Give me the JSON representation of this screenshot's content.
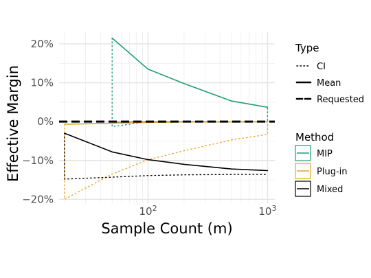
{
  "chart_data": {
    "type": "line",
    "xlabel": "Sample Count (m)",
    "ylabel": "Effective Margin",
    "x_scale": "log10",
    "xlim": [
      18,
      1150
    ],
    "ylim": [
      -21,
      23
    ],
    "x_ticks": [
      {
        "value": 100,
        "base": "10",
        "exp": "2"
      },
      {
        "value": 1000,
        "base": "10",
        "exp": "3"
      }
    ],
    "y_ticks": [
      {
        "value": 20,
        "label": "20%"
      },
      {
        "value": 10,
        "label": "10%"
      },
      {
        "value": 0,
        "label": "0%"
      },
      {
        "value": -10,
        "label": "−10%"
      },
      {
        "value": -20,
        "label": "−20%"
      }
    ],
    "grid": true,
    "legend_placement": "right",
    "requested_margin": 0,
    "colors": {
      "MIP": "#1b9e77",
      "Plug-in": "#e6a429",
      "Mixed": "#000000",
      "Requested": "#000000"
    },
    "legend": {
      "type_title": "Type",
      "type_items": [
        {
          "label": "CI",
          "dash": "dotted"
        },
        {
          "label": "Mean",
          "dash": "solid"
        },
        {
          "label": "Requested",
          "dash": "dashed"
        }
      ],
      "method_title": "Method",
      "method_items": [
        {
          "label": "MIP",
          "color": "#1b9e77"
        },
        {
          "label": "Plug-in",
          "color": "#e6a429"
        },
        {
          "label": "Mixed",
          "color": "#000000"
        }
      ]
    },
    "series": [
      {
        "method": "MIP",
        "type": "Mean",
        "x": [
          50,
          100,
          200,
          500,
          1000
        ],
        "y": [
          21.5,
          13.5,
          9.8,
          5.3,
          3.7
        ]
      },
      {
        "method": "MIP",
        "type": "Mean",
        "x": [
          50,
          100,
          200,
          500,
          1000
        ],
        "y": [
          -0.2,
          -0.1,
          -0.05,
          -0.05,
          0
        ]
      },
      {
        "method": "MIP",
        "type": "CI",
        "x": [
          50,
          50,
          100,
          200,
          500,
          1000,
          1000
        ],
        "y": [
          21.5,
          -1.3,
          0,
          0,
          0,
          0,
          3.7
        ]
      },
      {
        "method": "Plug-in",
        "type": "Mean",
        "x": [
          20,
          50,
          100,
          200,
          500,
          1000
        ],
        "y": [
          -0.7,
          -0.4,
          -0.2,
          -0.1,
          -0.05,
          -0.05
        ]
      },
      {
        "method": "Plug-in",
        "type": "CI",
        "x": [
          20,
          20,
          50,
          100,
          200,
          500,
          1000,
          1000
        ],
        "y": [
          -0.7,
          -20,
          -13.5,
          -9.8,
          -7.5,
          -4.7,
          -3.3,
          -0.05
        ]
      },
      {
        "method": "Mixed",
        "type": "Mean",
        "x": [
          20,
          50,
          100,
          200,
          500,
          1000
        ],
        "y": [
          -3,
          -7.8,
          -9.8,
          -11,
          -12.2,
          -12.6
        ]
      },
      {
        "method": "Mixed",
        "type": "CI",
        "x": [
          20,
          20,
          50,
          100,
          200,
          500,
          1000
        ],
        "y": [
          -3,
          -14.8,
          -14.3,
          -13.9,
          -13.7,
          -13.6,
          -13.6
        ]
      }
    ]
  }
}
